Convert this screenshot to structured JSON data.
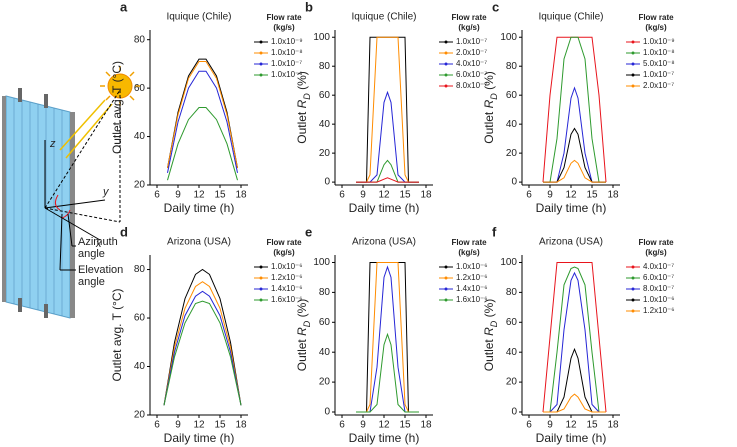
{
  "schematic": {
    "axes": [
      "z",
      "y",
      "x"
    ],
    "azimuth": [
      "Azimuth",
      "angle"
    ],
    "elevation": [
      "Elevation",
      "angle"
    ]
  },
  "chart_data": [
    {
      "type": "line",
      "panel": "a",
      "title": "Iquique (Chile)",
      "xlabel": "Daily time (h)",
      "ylabel": [
        "Outlet avg. T (°C)"
      ],
      "legend_title": [
        "Flow rate",
        "(kg/s)"
      ],
      "xlim": [
        5,
        19
      ],
      "xticks": [
        6,
        9,
        12,
        15,
        18
      ],
      "ylim": [
        20,
        84
      ],
      "yticks": [
        20,
        40,
        60,
        80
      ],
      "x": [
        7.5,
        9,
        10.5,
        12,
        12.5,
        13,
        14.5,
        16,
        17.5
      ],
      "series": [
        {
          "name": "1.0x10⁻⁹",
          "color": "#000000",
          "values": [
            27,
            50,
            65,
            72,
            72,
            72,
            65,
            50,
            27
          ]
        },
        {
          "name": "1.0x10⁻⁸",
          "color": "#ff8c00",
          "values": [
            27,
            49,
            64,
            71,
            71,
            71,
            64,
            49,
            27
          ]
        },
        {
          "name": "1.0x10⁻⁷",
          "color": "#2626d6",
          "values": [
            25,
            46,
            60,
            67,
            67,
            67,
            60,
            46,
            25
          ]
        },
        {
          "name": "1.0x10⁻⁶",
          "color": "#2e9a2e",
          "values": [
            22,
            37,
            47,
            52,
            52,
            52,
            47,
            37,
            22
          ]
        }
      ]
    },
    {
      "type": "line",
      "panel": "b",
      "title": "Iquique (Chile)",
      "xlabel": "Daily time (h)",
      "ylabel": [
        "Outlet ",
        "R",
        "D",
        " (%)"
      ],
      "legend_title": [
        "Flow rate",
        "(kg/s)"
      ],
      "xlim": [
        5,
        19
      ],
      "xticks": [
        6,
        9,
        12,
        15,
        18
      ],
      "ylim": [
        -2,
        105
      ],
      "yticks": [
        0,
        20,
        40,
        60,
        80,
        100
      ],
      "x": [
        8,
        9.5,
        10,
        11,
        12,
        12.5,
        13,
        14,
        15,
        15.5,
        17
      ],
      "series": [
        {
          "name": "1.0x10⁻⁷",
          "color": "#000000",
          "values": [
            0,
            0,
            100,
            100,
            100,
            100,
            100,
            100,
            100,
            0,
            0
          ]
        },
        {
          "name": "2.0x10⁻⁷",
          "color": "#ff8c00",
          "values": [
            0,
            0,
            5,
            100,
            100,
            100,
            100,
            100,
            5,
            0,
            0
          ]
        },
        {
          "name": "4.0x10⁻⁷",
          "color": "#2626d6",
          "values": [
            0,
            0,
            0,
            5,
            55,
            62,
            55,
            5,
            0,
            0,
            0
          ]
        },
        {
          "name": "6.0x10⁻⁷",
          "color": "#2e9a2e",
          "values": [
            0,
            0,
            0,
            0,
            12,
            15,
            12,
            0,
            0,
            0,
            0
          ]
        },
        {
          "name": "8.0x10⁻⁷",
          "color": "#e8141c",
          "values": [
            0,
            0,
            0,
            0,
            2,
            3,
            2,
            0,
            0,
            0,
            0
          ]
        }
      ]
    },
    {
      "type": "line",
      "panel": "c",
      "title": "Iquique (Chile)",
      "xlabel": "Daily time (h)",
      "ylabel": [
        "Outlet ",
        "R",
        "D",
        " (%)"
      ],
      "legend_title": [
        "Flow rate",
        "(kg/s)"
      ],
      "xlim": [
        5,
        19
      ],
      "xticks": [
        6,
        9,
        12,
        15,
        18
      ],
      "ylim": [
        -2,
        105
      ],
      "yticks": [
        0,
        20,
        40,
        60,
        80,
        100
      ],
      "x": [
        8,
        9,
        10,
        11,
        12,
        12.5,
        13,
        14,
        15,
        16,
        17
      ],
      "series": [
        {
          "name": "1.0x10⁻⁹",
          "color": "#e8141c",
          "values": [
            0,
            60,
            100,
            100,
            100,
            100,
            100,
            100,
            100,
            60,
            0
          ]
        },
        {
          "name": "1.0x10⁻⁸",
          "color": "#2e9a2e",
          "values": [
            0,
            0,
            30,
            85,
            100,
            100,
            100,
            85,
            30,
            0,
            0
          ]
        },
        {
          "name": "5.0x10⁻⁸",
          "color": "#2626d6",
          "values": [
            0,
            0,
            0,
            20,
            58,
            65,
            58,
            20,
            0,
            0,
            0
          ]
        },
        {
          "name": "1.0x10⁻⁷",
          "color": "#000000",
          "values": [
            0,
            0,
            0,
            10,
            33,
            37,
            33,
            10,
            0,
            0,
            0
          ]
        },
        {
          "name": "2.0x10⁻⁷",
          "color": "#ff8c00",
          "values": [
            0,
            0,
            0,
            3,
            13,
            15,
            13,
            3,
            0,
            0,
            0
          ]
        }
      ]
    },
    {
      "type": "line",
      "panel": "d",
      "title": "Arizona (USA)",
      "xlabel": "Daily time (h)",
      "ylabel": [
        "Outlet avg. T (°C)"
      ],
      "legend_title": [
        "Flow rate",
        "(kg/s)"
      ],
      "xlim": [
        5,
        19
      ],
      "xticks": [
        6,
        9,
        12,
        15,
        18
      ],
      "ylim": [
        20,
        86
      ],
      "yticks": [
        20,
        40,
        60,
        80
      ],
      "x": [
        7,
        8.5,
        10,
        11.5,
        12.5,
        13.5,
        15,
        16.5,
        18
      ],
      "series": [
        {
          "name": "1.0x10⁻⁶",
          "color": "#000000",
          "values": [
            24,
            50,
            68,
            78,
            80,
            78,
            68,
            50,
            24
          ]
        },
        {
          "name": "1.2x10⁻⁶",
          "color": "#ff8c00",
          "values": [
            24,
            48,
            64,
            73,
            75,
            73,
            64,
            48,
            24
          ]
        },
        {
          "name": "1.4x10⁻⁶",
          "color": "#2626d6",
          "values": [
            24,
            46,
            61,
            69,
            71,
            69,
            61,
            46,
            24
          ]
        },
        {
          "name": "1.6x10⁻⁶",
          "color": "#2e9a2e",
          "values": [
            24,
            44,
            58,
            66,
            67,
            66,
            58,
            44,
            24
          ]
        }
      ]
    },
    {
      "type": "line",
      "panel": "e",
      "title": "Arizona (USA)",
      "xlabel": "Daily time (h)",
      "ylabel": [
        "Outlet ",
        "R",
        "D",
        " (%)"
      ],
      "legend_title": [
        "Flow rate",
        "(kg/s)"
      ],
      "xlim": [
        5,
        19
      ],
      "xticks": [
        6,
        9,
        12,
        15,
        18
      ],
      "ylim": [
        -2,
        105
      ],
      "yticks": [
        0,
        20,
        40,
        60,
        80,
        100
      ],
      "x": [
        8,
        9.5,
        10,
        11,
        12,
        12.5,
        13,
        14,
        15,
        15.5,
        17
      ],
      "series": [
        {
          "name": "1.0x10⁻⁶",
          "color": "#000000",
          "values": [
            0,
            0,
            100,
            100,
            100,
            100,
            100,
            100,
            100,
            0,
            0
          ]
        },
        {
          "name": "1.2x10⁻⁶",
          "color": "#ff8c00",
          "values": [
            0,
            0,
            5,
            100,
            100,
            100,
            100,
            100,
            5,
            0,
            0
          ]
        },
        {
          "name": "1.4x10⁻⁶",
          "color": "#2626d6",
          "values": [
            0,
            0,
            0,
            30,
            90,
            97,
            90,
            30,
            0,
            0,
            0
          ]
        },
        {
          "name": "1.6x10⁻⁶",
          "color": "#2e9a2e",
          "values": [
            0,
            0,
            0,
            5,
            45,
            52,
            45,
            5,
            0,
            0,
            0
          ]
        }
      ]
    },
    {
      "type": "line",
      "panel": "f",
      "title": "Arizona (USA)",
      "xlabel": "Daily time (h)",
      "ylabel": [
        "Outlet ",
        "R",
        "D",
        " (%)"
      ],
      "legend_title": [
        "Flow rate",
        "(kg/s)"
      ],
      "xlim": [
        5,
        19
      ],
      "xticks": [
        6,
        9,
        12,
        15,
        18
      ],
      "ylim": [
        -2,
        105
      ],
      "yticks": [
        0,
        20,
        40,
        60,
        80,
        100
      ],
      "x": [
        8,
        9,
        10,
        11,
        12,
        12.5,
        13,
        14,
        15,
        16,
        17
      ],
      "series": [
        {
          "name": "4.0x10⁻⁷",
          "color": "#e8141c",
          "values": [
            0,
            50,
            100,
            100,
            100,
            100,
            100,
            100,
            100,
            50,
            0
          ]
        },
        {
          "name": "6.0x10⁻⁷",
          "color": "#2e9a2e",
          "values": [
            0,
            0,
            40,
            85,
            96,
            97,
            96,
            85,
            40,
            0,
            0
          ]
        },
        {
          "name": "8.0x10⁻⁷",
          "color": "#2626d6",
          "values": [
            0,
            0,
            5,
            55,
            88,
            93,
            88,
            55,
            5,
            0,
            0
          ]
        },
        {
          "name": "1.0x10⁻⁶",
          "color": "#000000",
          "values": [
            0,
            0,
            0,
            10,
            36,
            42,
            36,
            10,
            0,
            0,
            0
          ]
        },
        {
          "name": "1.2x10⁻⁶",
          "color": "#ff8c00",
          "values": [
            0,
            0,
            0,
            2,
            10,
            12,
            10,
            2,
            0,
            0,
            0
          ]
        }
      ]
    }
  ]
}
